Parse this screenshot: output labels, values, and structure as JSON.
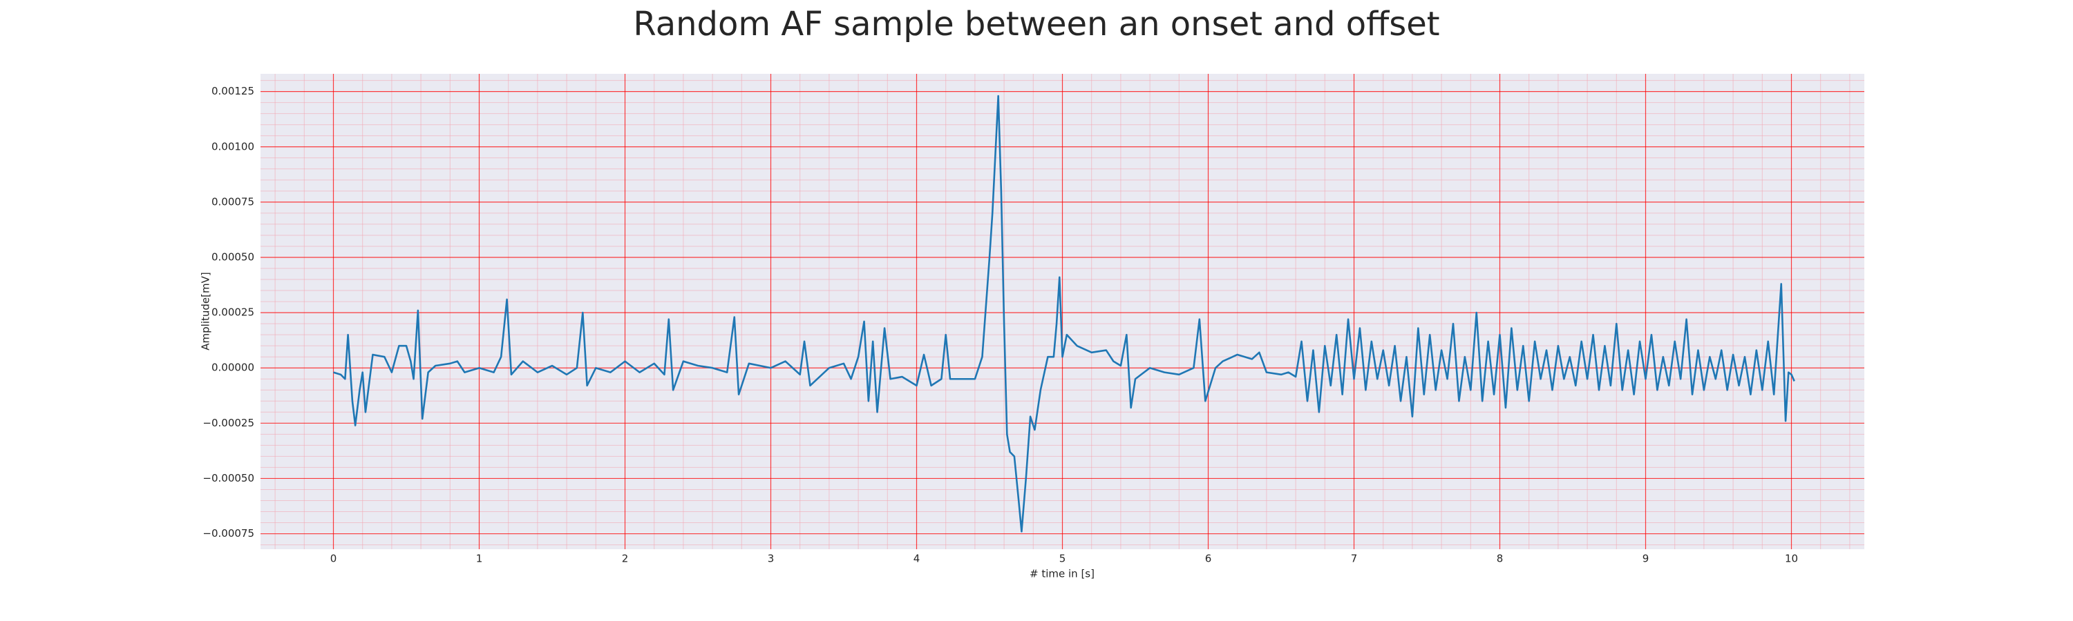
{
  "chart_data": {
    "type": "line",
    "title": "Random AF sample between an onset and offset",
    "xlabel": "# time in [s]",
    "ylabel": "Amplitude[mV]",
    "color": "#1f77b4",
    "grid": true,
    "grid_color": "#ff0000",
    "minor_grid_color": "#f2a9b4",
    "background": "#eaeaf2",
    "xlim": [
      -0.5,
      10.5
    ],
    "ylim": [
      -0.00082,
      0.00133
    ],
    "xticks": [
      0,
      1,
      2,
      3,
      4,
      5,
      6,
      7,
      8,
      9,
      10
    ],
    "yticks": [
      {
        "value": -0.00075,
        "label": "−0.00075"
      },
      {
        "value": -0.0005,
        "label": "−0.00050"
      },
      {
        "value": -0.00025,
        "label": "−0.00025"
      },
      {
        "value": 0,
        "label": "0.00000"
      },
      {
        "value": 0.00025,
        "label": "0.00025"
      },
      {
        "value": 0.0005,
        "label": "0.00050"
      },
      {
        "value": 0.00075,
        "label": "0.00075"
      },
      {
        "value": 0.001,
        "label": "0.00100"
      },
      {
        "value": 0.00125,
        "label": "0.00125"
      }
    ],
    "xticks_minor": [
      -0.4,
      -0.2,
      0.2,
      0.4,
      0.6,
      0.8,
      1.2,
      1.4,
      1.6,
      1.8,
      2.2,
      2.4,
      2.6,
      2.8,
      3.2,
      3.4,
      3.6,
      3.8,
      4.2,
      4.4,
      4.6,
      4.8,
      5.2,
      5.4,
      5.6,
      5.8,
      6.2,
      6.4,
      6.6,
      6.8,
      7.2,
      7.4,
      7.6,
      7.8,
      8.2,
      8.4,
      8.6,
      8.8,
      9.2,
      9.4,
      9.6,
      9.8,
      10.2,
      10.4
    ],
    "yticks_minor": [
      -0.0008,
      -0.0007,
      -0.00065,
      -0.0006,
      -0.00055,
      -0.00045,
      -0.0004,
      -0.00035,
      -0.0003,
      -0.0002,
      -0.00015,
      -0.0001,
      -5e-05,
      5e-05,
      0.0001,
      0.00015,
      0.0002,
      0.0003,
      0.00035,
      0.0004,
      0.00045,
      0.00055,
      0.0006,
      0.00065,
      0.0007,
      0.0008,
      0.00085,
      0.0009,
      0.00095,
      0.00105,
      0.0011,
      0.00115,
      0.0012,
      0.0013
    ],
    "x": [
      0,
      0.05,
      0.08,
      0.1,
      0.13,
      0.15,
      0.18,
      0.2,
      0.22,
      0.27,
      0.35,
      0.4,
      0.45,
      0.5,
      0.53,
      0.55,
      0.58,
      0.61,
      0.65,
      0.7,
      0.8,
      0.85,
      0.9,
      1.0,
      1.1,
      1.15,
      1.19,
      1.22,
      1.3,
      1.4,
      1.5,
      1.6,
      1.67,
      1.71,
      1.74,
      1.8,
      1.9,
      2.0,
      2.1,
      2.2,
      2.27,
      2.3,
      2.33,
      2.4,
      2.5,
      2.6,
      2.7,
      2.75,
      2.78,
      2.85,
      3.0,
      3.1,
      3.2,
      3.23,
      3.27,
      3.4,
      3.5,
      3.55,
      3.6,
      3.64,
      3.67,
      3.7,
      3.73,
      3.78,
      3.82,
      3.9,
      4.0,
      4.05,
      4.1,
      4.17,
      4.2,
      4.23,
      4.3,
      4.4,
      4.45,
      4.5,
      4.52,
      4.56,
      4.58,
      4.6,
      4.62,
      4.64,
      4.67,
      4.7,
      4.72,
      4.75,
      4.78,
      4.81,
      4.85,
      4.9,
      4.94,
      4.96,
      4.98,
      5.0,
      5.03,
      5.1,
      5.2,
      5.3,
      5.35,
      5.4,
      5.44,
      5.47,
      5.5,
      5.6,
      5.7,
      5.8,
      5.9,
      5.94,
      5.98,
      6.05,
      6.1,
      6.2,
      6.3,
      6.35,
      6.4,
      6.5,
      6.55,
      6.6,
      6.64,
      6.68,
      6.72,
      6.76,
      6.8,
      6.84,
      6.88,
      6.92,
      6.96,
      7.0,
      7.04,
      7.08,
      7.12,
      7.16,
      7.2,
      7.24,
      7.28,
      7.32,
      7.36,
      7.4,
      7.44,
      7.48,
      7.52,
      7.56,
      7.6,
      7.64,
      7.68,
      7.72,
      7.76,
      7.8,
      7.84,
      7.88,
      7.92,
      7.96,
      8.0,
      8.04,
      8.08,
      8.12,
      8.16,
      8.2,
      8.24,
      8.28,
      8.32,
      8.36,
      8.4,
      8.44,
      8.48,
      8.52,
      8.56,
      8.6,
      8.64,
      8.68,
      8.72,
      8.76,
      8.8,
      8.84,
      8.88,
      8.92,
      8.96,
      9.0,
      9.04,
      9.08,
      9.12,
      9.16,
      9.2,
      9.24,
      9.28,
      9.32,
      9.36,
      9.4,
      9.44,
      9.48,
      9.52,
      9.56,
      9.6,
      9.64,
      9.68,
      9.72,
      9.76,
      9.8,
      9.84,
      9.88,
      9.93,
      9.96,
      9.98,
      10.0,
      10.02
    ],
    "values": [
      -2e-05,
      -3e-05,
      -5e-05,
      0.00015,
      -0.00015,
      -0.00026,
      -0.0001,
      -2e-05,
      -0.0002,
      6e-05,
      5e-05,
      -2e-05,
      0.0001,
      0.0001,
      3e-05,
      -5e-05,
      0.00026,
      -0.00023,
      -2e-05,
      1e-05,
      2e-05,
      3e-05,
      -2e-05,
      0,
      -2e-05,
      5e-05,
      0.00031,
      -3e-05,
      3e-05,
      -2e-05,
      1e-05,
      -3e-05,
      0,
      0.00025,
      -8e-05,
      0,
      -2e-05,
      3e-05,
      -2e-05,
      2e-05,
      -3e-05,
      0.00022,
      -0.0001,
      3e-05,
      1e-05,
      0,
      -2e-05,
      0.00023,
      -0.00012,
      2e-05,
      0,
      3e-05,
      -3e-05,
      0.00012,
      -8e-05,
      0,
      2e-05,
      -5e-05,
      5e-05,
      0.00021,
      -0.00015,
      0.00012,
      -0.0002,
      0.00018,
      -5e-05,
      -4e-05,
      -8e-05,
      6e-05,
      -8e-05,
      -5e-05,
      0.00015,
      -5e-05,
      -5e-05,
      -5e-05,
      5e-05,
      0.0005,
      0.0007,
      0.00123,
      0.0008,
      0.0002,
      -0.0003,
      -0.00038,
      -0.0004,
      -0.0006,
      -0.00074,
      -0.0005,
      -0.00022,
      -0.00028,
      -0.0001,
      5e-05,
      5e-05,
      0.0002,
      0.00041,
      5e-05,
      0.00015,
      0.0001,
      7e-05,
      8e-05,
      3e-05,
      1e-05,
      0.00015,
      -0.00018,
      -5e-05,
      0,
      -2e-05,
      -3e-05,
      0,
      0.00022,
      -0.00015,
      0,
      3e-05,
      6e-05,
      4e-05,
      7e-05,
      -2e-05,
      -3e-05,
      -2e-05,
      -4e-05,
      0.00012,
      -0.00015,
      8e-05,
      -0.0002,
      0.0001,
      -8e-05,
      0.00015,
      -0.00012,
      0.00022,
      -5e-05,
      0.00018,
      -0.0001,
      0.00012,
      -5e-05,
      8e-05,
      -8e-05,
      0.0001,
      -0.00015,
      5e-05,
      -0.00022,
      0.00018,
      -0.00012,
      0.00015,
      -0.0001,
      8e-05,
      -5e-05,
      0.0002,
      -0.00015,
      5e-05,
      -0.0001,
      0.00025,
      -0.00015,
      0.00012,
      -0.00012,
      0.00015,
      -0.00018,
      0.00018,
      -0.0001,
      0.0001,
      -0.00015,
      0.00012,
      -5e-05,
      8e-05,
      -0.0001,
      0.0001,
      -5e-05,
      5e-05,
      -8e-05,
      0.00012,
      -5e-05,
      0.00015,
      -0.0001,
      0.0001,
      -8e-05,
      0.0002,
      -0.0001,
      8e-05,
      -0.00012,
      0.00012,
      -5e-05,
      0.00015,
      -0.0001,
      5e-05,
      -8e-05,
      0.00012,
      -5e-05,
      0.00022,
      -0.00012,
      8e-05,
      -0.0001,
      5e-05,
      -5e-05,
      8e-05,
      -0.0001,
      6e-05,
      -8e-05,
      5e-05,
      -0.00012,
      8e-05,
      -0.0001,
      0.00012,
      -0.00012,
      0.00038,
      -0.00024,
      -2e-05,
      -3e-05,
      -6e-05
    ]
  }
}
